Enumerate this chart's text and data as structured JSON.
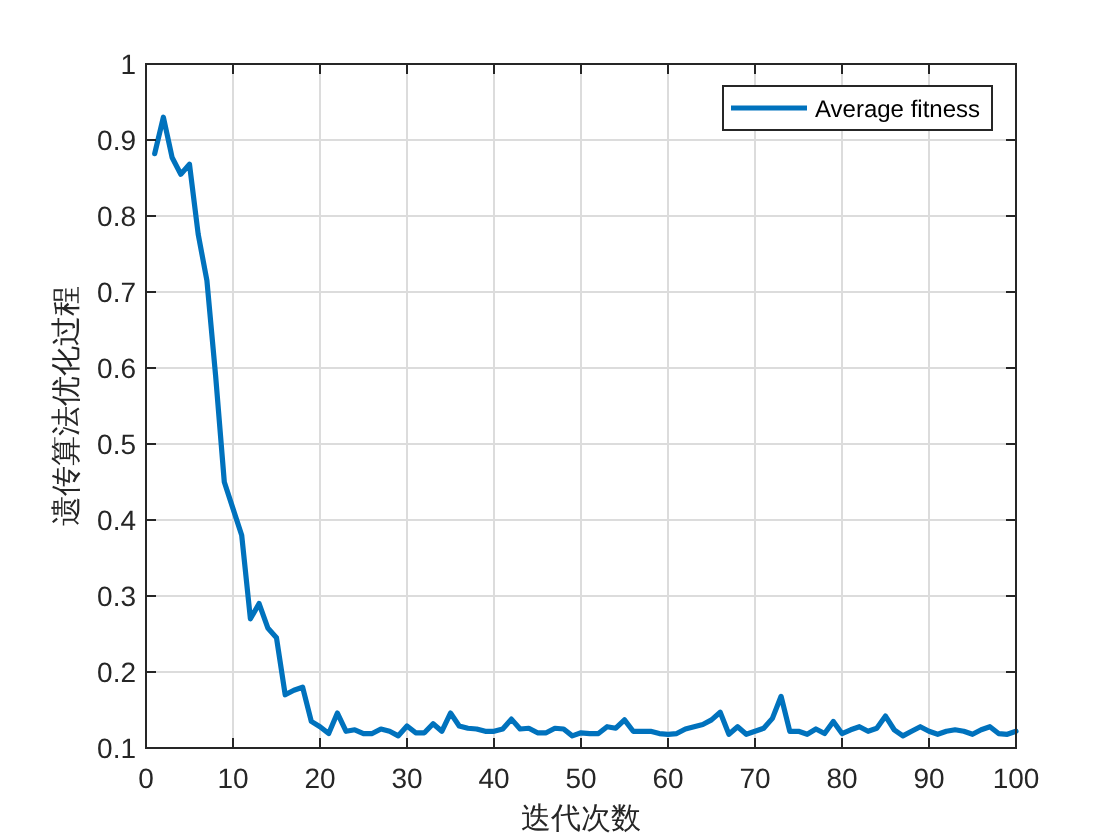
{
  "chart_data": {
    "type": "line",
    "xlabel": "迭代次数",
    "ylabel": "遗传算法优化过程",
    "x": [
      1,
      2,
      3,
      4,
      5,
      6,
      7,
      8,
      9,
      10,
      11,
      12,
      13,
      14,
      15,
      16,
      17,
      18,
      19,
      20,
      21,
      22,
      23,
      24,
      25,
      26,
      27,
      28,
      29,
      30,
      31,
      32,
      33,
      34,
      35,
      36,
      37,
      38,
      39,
      40,
      41,
      42,
      43,
      44,
      45,
      46,
      47,
      48,
      49,
      50,
      51,
      52,
      53,
      54,
      55,
      56,
      57,
      58,
      59,
      60,
      61,
      62,
      63,
      64,
      65,
      66,
      67,
      68,
      69,
      70,
      71,
      72,
      73,
      74,
      75,
      76,
      77,
      78,
      79,
      80,
      81,
      82,
      83,
      84,
      85,
      86,
      87,
      88,
      89,
      90,
      91,
      92,
      93,
      94,
      95,
      96,
      97,
      98,
      99,
      100
    ],
    "series": [
      {
        "name": "Average fitness",
        "color": "#0072bd",
        "values": [
          0.882,
          0.93,
          0.877,
          0.855,
          0.868,
          0.776,
          0.715,
          0.59,
          0.45,
          0.415,
          0.38,
          0.27,
          0.29,
          0.258,
          0.245,
          0.17,
          0.176,
          0.18,
          0.135,
          0.128,
          0.119,
          0.146,
          0.122,
          0.124,
          0.119,
          0.119,
          0.125,
          0.122,
          0.116,
          0.129,
          0.12,
          0.12,
          0.132,
          0.122,
          0.146,
          0.129,
          0.126,
          0.125,
          0.122,
          0.122,
          0.125,
          0.138,
          0.125,
          0.126,
          0.12,
          0.12,
          0.126,
          0.125,
          0.116,
          0.12,
          0.119,
          0.119,
          0.128,
          0.126,
          0.137,
          0.122,
          0.122,
          0.122,
          0.119,
          0.118,
          0.119,
          0.125,
          0.128,
          0.131,
          0.137,
          0.147,
          0.118,
          0.128,
          0.118,
          0.122,
          0.126,
          0.139,
          0.168,
          0.122,
          0.122,
          0.118,
          0.125,
          0.119,
          0.135,
          0.119,
          0.124,
          0.128,
          0.122,
          0.126,
          0.142,
          0.124,
          0.116,
          0.122,
          0.128,
          0.122,
          0.118,
          0.122,
          0.124,
          0.122,
          0.118,
          0.124,
          0.128,
          0.119,
          0.118,
          0.122
        ]
      }
    ],
    "xlim": [
      0,
      100
    ],
    "xticks": [
      0,
      10,
      20,
      30,
      40,
      50,
      60,
      70,
      80,
      90,
      100
    ],
    "ylim": [
      0.1,
      1
    ],
    "yticks": [
      0.1,
      0.2,
      0.3,
      0.4,
      0.5,
      0.6,
      0.7,
      0.8,
      0.9,
      1
    ],
    "grid": true,
    "legend": "top right"
  }
}
